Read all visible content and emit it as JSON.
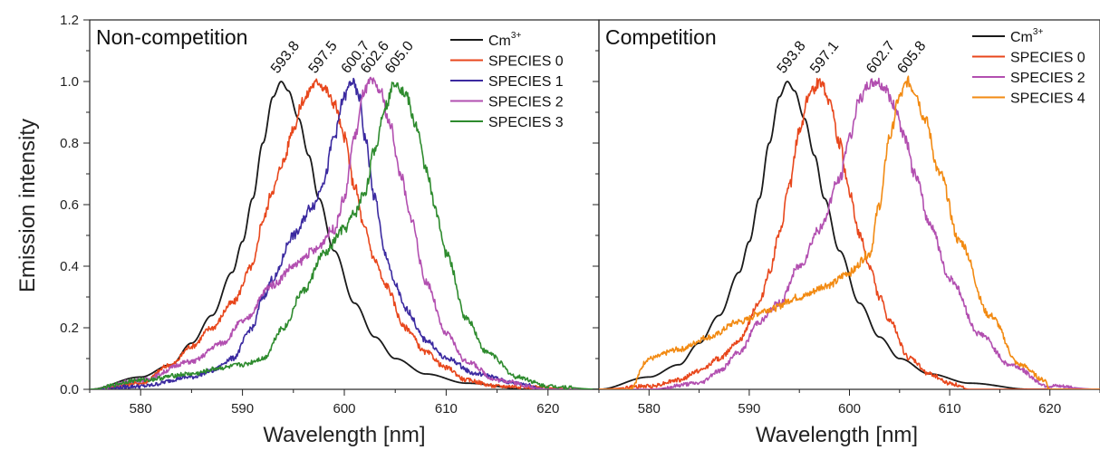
{
  "ylabel": "Emission intensity",
  "chart_data": [
    {
      "type": "line",
      "title": "Non-competition",
      "xlabel": "Wavelength [nm]",
      "ylabel": "Emission intensity",
      "xlim": [
        575,
        625
      ],
      "ylim": [
        0,
        1.2
      ],
      "xticks": [
        580,
        590,
        600,
        610,
        620
      ],
      "yticks": [
        0.0,
        0.2,
        0.4,
        0.6,
        0.8,
        1.0,
        1.2
      ],
      "ytick_labels": [
        "0.0",
        "0.2",
        "0.4",
        "0.6",
        "0.8",
        "1.0",
        "1.2"
      ],
      "legend_position": "top-right",
      "peak_labels": [
        "593.8",
        "597.5",
        "600.7",
        "602.6",
        "605.0"
      ],
      "peak_x": [
        593.8,
        597.5,
        600.7,
        602.6,
        605.0
      ],
      "series": [
        {
          "name": "Cm",
          "name_sup": "3+",
          "color": "#1a1a1a",
          "peak": 593.8,
          "x": [
            575,
            580,
            583,
            585,
            587,
            589,
            590,
            591,
            592,
            593,
            593.8,
            594.5,
            595.5,
            596.5,
            597.5,
            599,
            601,
            603,
            605,
            608,
            612,
            618,
            625
          ],
          "y": [
            0.0,
            0.04,
            0.08,
            0.15,
            0.24,
            0.38,
            0.48,
            0.62,
            0.8,
            0.95,
            1.0,
            0.97,
            0.88,
            0.76,
            0.62,
            0.45,
            0.28,
            0.17,
            0.1,
            0.05,
            0.02,
            0.0,
            0.0
          ]
        },
        {
          "name": "SPECIES 0",
          "color": "#e8471c",
          "peak": 597.5,
          "x": [
            575,
            580,
            583,
            585,
            587,
            589,
            591,
            592,
            593,
            594,
            595,
            596,
            597,
            597.5,
            598,
            599,
            600,
            601,
            602,
            603,
            604,
            606,
            608,
            610,
            612,
            615,
            625
          ],
          "y": [
            0.0,
            0.02,
            0.08,
            0.14,
            0.2,
            0.28,
            0.4,
            0.55,
            0.65,
            0.74,
            0.85,
            0.94,
            0.99,
            1.0,
            0.98,
            0.93,
            0.82,
            0.66,
            0.52,
            0.42,
            0.34,
            0.2,
            0.12,
            0.07,
            0.03,
            0.01,
            0.0
          ]
        },
        {
          "name": "SPECIES 1",
          "color": "#3b2aa0",
          "peak": 600.7,
          "x": [
            575,
            580,
            585,
            587,
            589,
            591,
            592,
            593,
            595,
            597,
            598,
            599,
            600,
            600.7,
            601.5,
            602,
            603,
            604,
            605,
            606,
            608,
            610,
            613,
            617,
            620,
            625
          ],
          "y": [
            0.0,
            0.01,
            0.04,
            0.06,
            0.1,
            0.2,
            0.3,
            0.36,
            0.5,
            0.6,
            0.68,
            0.82,
            0.95,
            1.0,
            0.95,
            0.82,
            0.62,
            0.44,
            0.34,
            0.26,
            0.16,
            0.1,
            0.05,
            0.02,
            0.0,
            0.0
          ]
        },
        {
          "name": "SPECIES 2",
          "color": "#b24fb0",
          "peak": 602.6,
          "x": [
            575,
            580,
            585,
            588,
            590,
            593,
            595,
            597,
            599,
            600,
            601,
            602,
            602.6,
            603.5,
            604.5,
            605.5,
            606.5,
            608,
            610,
            612,
            615,
            620,
            625
          ],
          "y": [
            0.0,
            0.03,
            0.09,
            0.15,
            0.22,
            0.34,
            0.4,
            0.45,
            0.52,
            0.62,
            0.82,
            0.97,
            1.0,
            0.97,
            0.86,
            0.7,
            0.56,
            0.35,
            0.18,
            0.09,
            0.03,
            0.0,
            0.0
          ]
        },
        {
          "name": "SPECIES 3",
          "color": "#2e8b2e",
          "peak": 605.0,
          "x": [
            575,
            580,
            585,
            588,
            590,
            592,
            594,
            596,
            598,
            600,
            601,
            602,
            603,
            604,
            605,
            606,
            607,
            608,
            609,
            610,
            612,
            614,
            617,
            620,
            625
          ],
          "y": [
            0.0,
            0.03,
            0.05,
            0.07,
            0.08,
            0.1,
            0.2,
            0.32,
            0.44,
            0.52,
            0.57,
            0.64,
            0.78,
            0.92,
            1.0,
            0.96,
            0.86,
            0.72,
            0.58,
            0.44,
            0.23,
            0.12,
            0.04,
            0.01,
            0.0
          ]
        }
      ]
    },
    {
      "type": "line",
      "title": "Competition",
      "xlabel": "Wavelength [nm]",
      "ylabel": "",
      "xlim": [
        575,
        625
      ],
      "ylim": [
        0,
        1.2
      ],
      "xticks": [
        580,
        590,
        600,
        610,
        620
      ],
      "yticks": [
        0.0,
        0.2,
        0.4,
        0.6,
        0.8,
        1.0,
        1.2
      ],
      "legend_position": "top-right",
      "peak_labels": [
        "593.8",
        "597.1",
        "602.7",
        "605.8"
      ],
      "peak_x": [
        593.8,
        597.1,
        602.7,
        605.8
      ],
      "series": [
        {
          "name": "Cm",
          "name_sup": "3+",
          "color": "#1a1a1a",
          "peak": 593.8,
          "x": [
            575,
            580,
            583,
            585,
            587,
            589,
            590,
            591,
            592,
            593,
            593.8,
            594.5,
            595.5,
            596.5,
            597.5,
            599,
            601,
            603,
            605,
            608,
            612,
            618,
            625
          ],
          "y": [
            0.0,
            0.04,
            0.08,
            0.15,
            0.24,
            0.38,
            0.48,
            0.62,
            0.8,
            0.95,
            1.0,
            0.97,
            0.88,
            0.76,
            0.62,
            0.45,
            0.28,
            0.17,
            0.1,
            0.05,
            0.02,
            0.0,
            0.0
          ]
        },
        {
          "name": "SPECIES 0",
          "color": "#e8471c",
          "peak": 597.1,
          "x": [
            575,
            580,
            583,
            585,
            587,
            589,
            591,
            592,
            593,
            594,
            595,
            596,
            597.1,
            598,
            599,
            600,
            601,
            602,
            603,
            604,
            606,
            608,
            610,
            612,
            615,
            625
          ],
          "y": [
            0.0,
            0.01,
            0.03,
            0.06,
            0.1,
            0.16,
            0.28,
            0.38,
            0.5,
            0.66,
            0.84,
            0.96,
            1.0,
            0.94,
            0.8,
            0.64,
            0.5,
            0.4,
            0.3,
            0.22,
            0.1,
            0.05,
            0.02,
            0.0,
            0.0,
            0.0
          ]
        },
        {
          "name": "SPECIES 2",
          "color": "#b24fb0",
          "peak": 602.7,
          "x": [
            575,
            580,
            585,
            587,
            589,
            591,
            593,
            595,
            597,
            599,
            600,
            601,
            602,
            602.7,
            603.5,
            604.5,
            605.5,
            606.5,
            608,
            610,
            613,
            616,
            620,
            625
          ],
          "y": [
            0.0,
            0.0,
            0.02,
            0.06,
            0.12,
            0.22,
            0.28,
            0.4,
            0.52,
            0.68,
            0.82,
            0.94,
            0.99,
            1.0,
            0.98,
            0.92,
            0.82,
            0.7,
            0.54,
            0.36,
            0.18,
            0.08,
            0.01,
            0.0
          ]
        },
        {
          "name": "SPECIES 4",
          "color": "#f28a12",
          "peak": 605.8,
          "x": [
            575,
            578,
            580,
            583,
            586,
            589,
            592,
            595,
            598,
            600,
            602,
            603,
            604,
            605,
            605.8,
            606.5,
            607.5,
            609,
            611,
            614,
            617,
            619.5,
            620,
            625
          ],
          "y": [
            0.0,
            0.0,
            0.1,
            0.13,
            0.17,
            0.22,
            0.26,
            0.3,
            0.34,
            0.38,
            0.44,
            0.6,
            0.82,
            0.95,
            1.0,
            0.97,
            0.88,
            0.7,
            0.48,
            0.24,
            0.08,
            0.03,
            0.0,
            0.0
          ]
        }
      ]
    }
  ]
}
